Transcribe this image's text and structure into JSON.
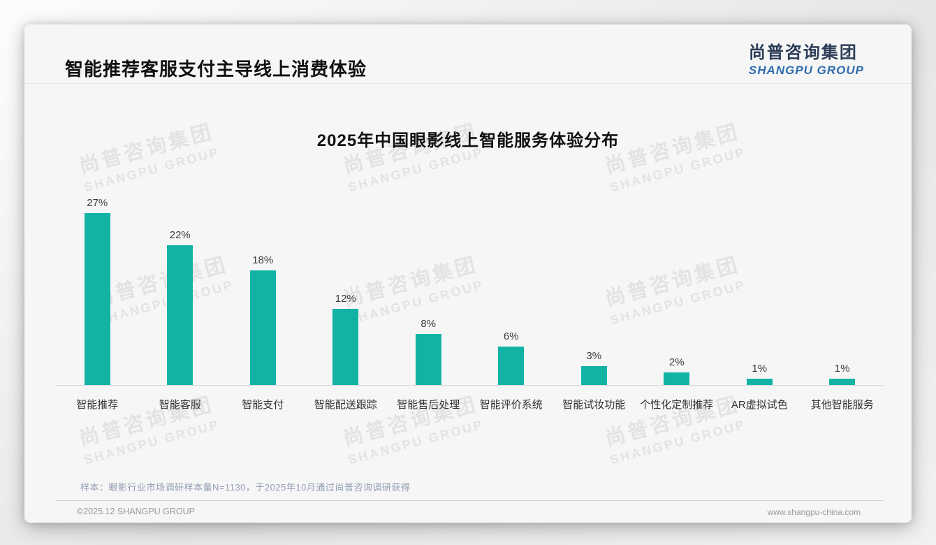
{
  "page": {
    "title": "智能推荐客服支付主导线上消费体验",
    "logo": {
      "cn": "尚普咨询集团",
      "en": "SHANGPU GROUP"
    },
    "watermark": {
      "cn": "尚普咨询集团",
      "en": "SHANGPU GROUP"
    },
    "note": "样本：眼影行业市场调研样本量N=1130，于2025年10月通过尚普咨询调研获得",
    "footer": {
      "left": "©2025.12 SHANGPU GROUP",
      "right": "www.shangpu-china.com"
    }
  },
  "chart_data": {
    "type": "bar",
    "title": "2025年中国眼影线上智能服务体验分布",
    "categories": [
      "智能推荐",
      "智能客服",
      "智能支付",
      "智能配送跟踪",
      "智能售后处理",
      "智能评价系统",
      "智能试妆功能",
      "个性化定制推荐",
      "AR虚拟试色",
      "其他智能服务"
    ],
    "values": [
      27,
      22,
      18,
      12,
      8,
      6,
      3,
      2,
      1,
      1
    ],
    "value_labels": [
      "27%",
      "22%",
      "18%",
      "12%",
      "8%",
      "6%",
      "3%",
      "2%",
      "1%",
      "1%"
    ],
    "unit": "%",
    "bar_color": "#12b3a5",
    "ylim": [
      0,
      30
    ],
    "grid": false,
    "legend": false,
    "xlabel": "",
    "ylabel": ""
  }
}
